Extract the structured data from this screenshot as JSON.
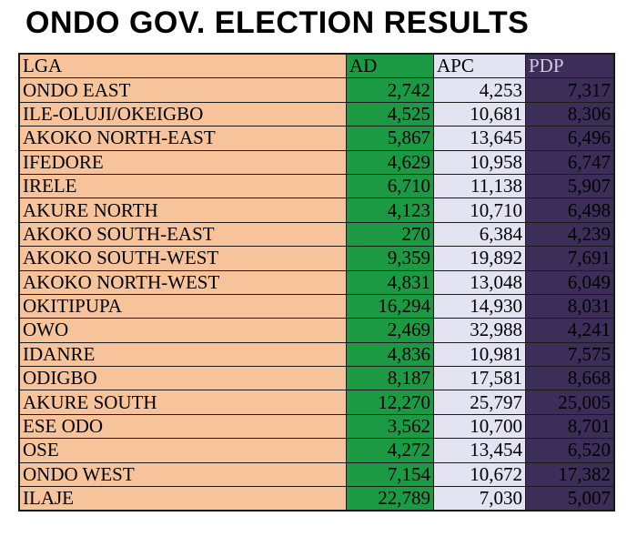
{
  "title": "ONDO GOV. ELECTION RESULTS",
  "table": {
    "headers": [
      "LGA",
      "AD",
      "APC",
      "PDP"
    ],
    "rows": [
      [
        "ONDO EAST",
        "2,742",
        "4,253",
        "7,317"
      ],
      [
        "ILE-OLUJI/OKEIGBO",
        "4,525",
        "10,681",
        "8,306"
      ],
      [
        "AKOKO NORTH-EAST",
        "5,867",
        "13,645",
        "6,496"
      ],
      [
        "IFEDORE",
        "4,629",
        "10,958",
        "6,747"
      ],
      [
        "IRELE",
        "6,710",
        "11,138",
        "5,907"
      ],
      [
        "AKURE NORTH",
        "4,123",
        "10,710",
        "6,498"
      ],
      [
        "AKOKO SOUTH-EAST",
        "270",
        "6,384",
        "4,239"
      ],
      [
        "AKOKO SOUTH-WEST",
        "9,359",
        "19,892",
        "7,691"
      ],
      [
        "AKOKO NORTH-WEST",
        "4,831",
        "13,048",
        "6,049"
      ],
      [
        "OKITIPUPA",
        "16,294",
        "14,930",
        "8,031"
      ],
      [
        "OWO",
        "2,469",
        "32,988",
        "4,241"
      ],
      [
        "IDANRE",
        "4,836",
        "10,981",
        "7,575"
      ],
      [
        "ODIGBO",
        "8,187",
        "17,581",
        "8,668"
      ],
      [
        "AKURE SOUTH",
        "12,270",
        "25,797",
        "25,005"
      ],
      [
        "ESE ODO",
        "3,562",
        "10,700",
        "8,701"
      ],
      [
        "OSE",
        "4,272",
        "13,454",
        "6,520"
      ],
      [
        "ONDO WEST",
        "7,154",
        "10,672",
        "17,382"
      ],
      [
        "ILAJE",
        "22,789",
        "7,030",
        "5,007"
      ]
    ]
  },
  "colors": {
    "lga": "#f7c39b",
    "ad": "#1c9a43",
    "apc": "#e4e3f2",
    "pdp": "#3c2e58"
  }
}
